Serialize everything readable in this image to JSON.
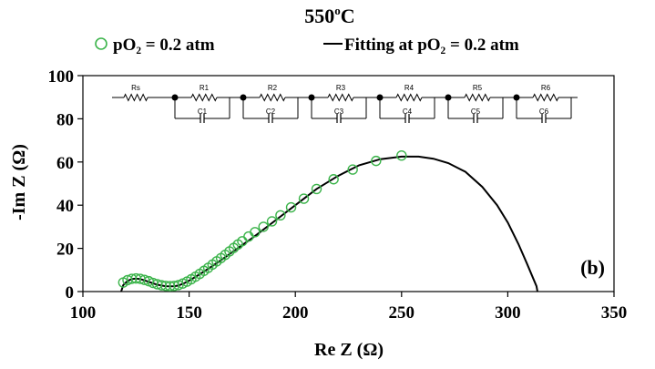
{
  "chart_data": {
    "type": "scatter",
    "title": "550",
    "title_sup": "o",
    "title_suffix": "C",
    "xlabel": "Re Z (Ω)",
    "ylabel": "-Im Z (Ω)",
    "xlim": [
      100,
      350
    ],
    "ylim": [
      0,
      100
    ],
    "xticks": [
      100,
      150,
      200,
      250,
      300,
      350
    ],
    "yticks": [
      0,
      20,
      40,
      60,
      80,
      100
    ],
    "grid": false,
    "legend_position": "top",
    "panel_label": "(b)",
    "series": [
      {
        "name": "pO₂ = 0.2 atm",
        "kind": "markers",
        "marker": "open-circle",
        "color": "#3cb44b",
        "x": [
          119,
          121,
          123,
          125,
          127,
          129,
          131,
          133,
          135,
          137,
          139,
          141,
          143,
          145,
          147,
          149,
          151,
          153,
          155,
          157,
          159,
          161,
          163,
          165,
          167,
          169,
          171,
          173,
          175,
          178,
          181,
          185,
          189,
          193,
          198,
          204,
          210,
          218,
          227,
          238,
          250
        ],
        "y": [
          4.2,
          5.3,
          5.9,
          6.1,
          5.9,
          5.4,
          4.8,
          4.0,
          3.4,
          2.9,
          2.6,
          2.5,
          2.6,
          3.0,
          3.7,
          4.6,
          5.7,
          6.9,
          8.2,
          9.6,
          11.0,
          12.5,
          14.0,
          15.5,
          17.0,
          18.6,
          20.2,
          21.8,
          23.3,
          25.5,
          27.5,
          30.0,
          32.5,
          35.3,
          39.0,
          43.0,
          47.5,
          52.0,
          56.5,
          60.5,
          63.0
        ]
      },
      {
        "name": "Fitting at pO₂ = 0.2 atm",
        "kind": "line",
        "color": "#000000",
        "x": [
          118,
          119,
          121,
          123,
          125,
          127,
          129,
          131,
          133,
          135,
          137,
          139,
          141,
          143,
          145,
          148,
          151,
          155,
          160,
          165,
          170,
          175,
          180,
          190,
          200,
          210,
          220,
          230,
          240,
          250,
          258,
          265,
          272,
          280,
          288,
          295,
          300,
          305,
          309,
          312,
          313.5,
          314
        ],
        "y": [
          0,
          3.0,
          4.9,
          5.8,
          6.0,
          5.8,
          5.2,
          4.5,
          3.8,
          3.2,
          2.8,
          2.5,
          2.4,
          2.5,
          2.8,
          4.0,
          5.6,
          8.0,
          11.2,
          14.5,
          18.0,
          21.5,
          25.0,
          32.5,
          40.0,
          47.5,
          53.5,
          58.5,
          61.3,
          62.5,
          62.5,
          61.5,
          59.5,
          55.5,
          48.5,
          40.0,
          32.0,
          22.0,
          13.0,
          6.0,
          2.5,
          0
        ]
      }
    ],
    "inset": {
      "type": "equivalent-circuit",
      "labels": [
        "Rs",
        "R1",
        "C1",
        "R2",
        "C2",
        "R3",
        "C3",
        "R4",
        "C4",
        "R5",
        "C5",
        "R6",
        "C6"
      ]
    }
  }
}
